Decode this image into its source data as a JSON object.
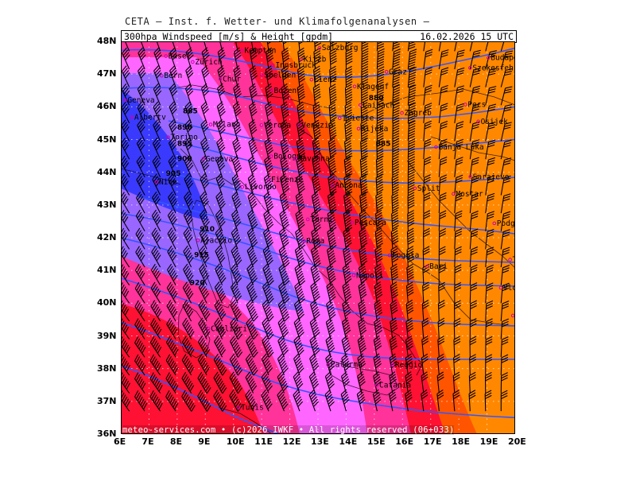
{
  "header": {
    "agency_line": "CETA – Inst. f. Wetter- und Klimafolgenanalysen –",
    "product_label": "300hpa Windspeed [m/s] & Height [gpdm]",
    "valid_time": "16.02.2026 15 UTC"
  },
  "footer": {
    "copyright": "meteo-services.com • (c)2026 IWKF • All rights reserved (06+033)"
  },
  "axes": {
    "x_ticks": [
      "6E",
      "7E",
      "8E",
      "9E",
      "10E",
      "11E",
      "12E",
      "13E",
      "14E",
      "15E",
      "16E",
      "17E",
      "18E",
      "19E",
      "20E"
    ],
    "y_ticks": [
      "48N",
      "47N",
      "46N",
      "45N",
      "44N",
      "43N",
      "42N",
      "41N",
      "40N",
      "39N",
      "38N",
      "37N",
      "36N"
    ]
  },
  "colors": {
    "jet_core": "#3a3aff",
    "violet": "#9966ff",
    "magenta": "#ff66ff",
    "pink": "#ff3399",
    "red": "#ff1133",
    "orange_red": "#ff5500",
    "orange": "#ff8800",
    "contour": "#3355ff",
    "barb": "#000000"
  },
  "cities": [
    {
      "name": "Kempten",
      "lon": 10.3,
      "lat": 47.72
    },
    {
      "name": "Salzburg",
      "lon": 13.05,
      "lat": 47.8
    },
    {
      "name": "Budapest",
      "lon": 19.05,
      "lat": 47.5
    },
    {
      "name": "Basel",
      "lon": 7.6,
      "lat": 47.55
    },
    {
      "name": "Zürich",
      "lon": 8.55,
      "lat": 47.37
    },
    {
      "name": "Kitzb",
      "lon": 12.4,
      "lat": 47.45
    },
    {
      "name": "Innsbruck",
      "lon": 11.4,
      "lat": 47.27
    },
    {
      "name": "Szekesfeh",
      "lon": 18.4,
      "lat": 47.19
    },
    {
      "name": "Soelden",
      "lon": 11.0,
      "lat": 46.97
    },
    {
      "name": "Lienz",
      "lon": 12.77,
      "lat": 46.83
    },
    {
      "name": "Graz",
      "lon": 15.43,
      "lat": 47.07
    },
    {
      "name": "Bern",
      "lon": 7.45,
      "lat": 46.95
    },
    {
      "name": "Chur",
      "lon": 9.53,
      "lat": 46.85
    },
    {
      "name": "Bozen",
      "lon": 11.35,
      "lat": 46.5
    },
    {
      "name": "Klagenf",
      "lon": 14.3,
      "lat": 46.62
    },
    {
      "name": "Pecs",
      "lon": 18.23,
      "lat": 46.07
    },
    {
      "name": "Geneva",
      "lon": 6.15,
      "lat": 46.2
    },
    {
      "name": "Albertv",
      "lon": 6.39,
      "lat": 45.68
    },
    {
      "name": "Laibach",
      "lon": 14.5,
      "lat": 46.05
    },
    {
      "name": "Zagreb",
      "lon": 15.98,
      "lat": 45.81
    },
    {
      "name": "Milano",
      "lon": 9.19,
      "lat": 45.46
    },
    {
      "name": "Venezia",
      "lon": 12.33,
      "lat": 45.44
    },
    {
      "name": "Trieste",
      "lon": 13.77,
      "lat": 45.65
    },
    {
      "name": "Osijek",
      "lon": 18.69,
      "lat": 45.55
    },
    {
      "name": "Verona",
      "lon": 10.99,
      "lat": 45.44
    },
    {
      "name": "Rijeka",
      "lon": 14.44,
      "lat": 45.33
    },
    {
      "name": "Torino",
      "lon": 7.68,
      "lat": 45.07
    },
    {
      "name": "Banja Luka",
      "lon": 17.19,
      "lat": 44.77
    },
    {
      "name": "Genova",
      "lon": 8.93,
      "lat": 44.41
    },
    {
      "name": "Bologna",
      "lon": 11.34,
      "lat": 44.49
    },
    {
      "name": "Ravenna",
      "lon": 12.2,
      "lat": 44.42
    },
    {
      "name": "Nice",
      "lon": 7.27,
      "lat": 43.7
    },
    {
      "name": "Firenze",
      "lon": 11.25,
      "lat": 43.77
    },
    {
      "name": "Ancona",
      "lon": 13.52,
      "lat": 43.6
    },
    {
      "name": "Split",
      "lon": 16.44,
      "lat": 43.51
    },
    {
      "name": "Sarajevo",
      "lon": 18.41,
      "lat": 43.86
    },
    {
      "name": "Livorno",
      "lon": 10.31,
      "lat": 43.55
    },
    {
      "name": "Mostar",
      "lon": 17.81,
      "lat": 43.34
    },
    {
      "name": "Terni",
      "lon": 12.64,
      "lat": 42.56
    },
    {
      "name": "Pescara",
      "lon": 14.21,
      "lat": 42.46
    },
    {
      "name": "Podgorica",
      "lon": 19.26,
      "lat": 42.44
    },
    {
      "name": "Ajaccio",
      "lon": 8.74,
      "lat": 41.92
    },
    {
      "name": "Roma",
      "lon": 12.5,
      "lat": 41.9
    },
    {
      "name": "Foggia",
      "lon": 15.54,
      "lat": 41.46
    },
    {
      "name": "Tirana",
      "lon": 19.82,
      "lat": 41.33
    },
    {
      "name": "Napoli",
      "lon": 14.27,
      "lat": 40.85
    },
    {
      "name": "Bari",
      "lon": 16.87,
      "lat": 41.12
    },
    {
      "name": "Vlora",
      "lon": 19.49,
      "lat": 40.47
    },
    {
      "name": "Korfu",
      "lon": 19.92,
      "lat": 39.62
    },
    {
      "name": "Cagliari",
      "lon": 9.11,
      "lat": 39.22
    },
    {
      "name": "Reggio",
      "lon": 15.65,
      "lat": 38.11
    },
    {
      "name": "Palermo",
      "lon": 13.36,
      "lat": 38.12
    },
    {
      "name": "Catania",
      "lon": 15.09,
      "lat": 37.5
    },
    {
      "name": "Tunis",
      "lon": 10.18,
      "lat": 36.81
    }
  ],
  "height_labels": [
    {
      "value": "885",
      "lon": 8.2,
      "lat": 45.8
    },
    {
      "value": "890",
      "lon": 8.0,
      "lat": 45.3
    },
    {
      "value": "895",
      "lon": 8.0,
      "lat": 44.8
    },
    {
      "value": "900",
      "lon": 8.0,
      "lat": 44.35
    },
    {
      "value": "905",
      "lon": 7.6,
      "lat": 43.9
    },
    {
      "value": "910",
      "lon": 8.8,
      "lat": 42.2
    },
    {
      "value": "915",
      "lon": 8.6,
      "lat": 41.4
    },
    {
      "value": "920",
      "lon": 8.45,
      "lat": 40.55
    },
    {
      "value": "880",
      "lon": 14.8,
      "lat": 46.2
    },
    {
      "value": "885",
      "lon": 15.05,
      "lat": 44.8
    }
  ]
}
